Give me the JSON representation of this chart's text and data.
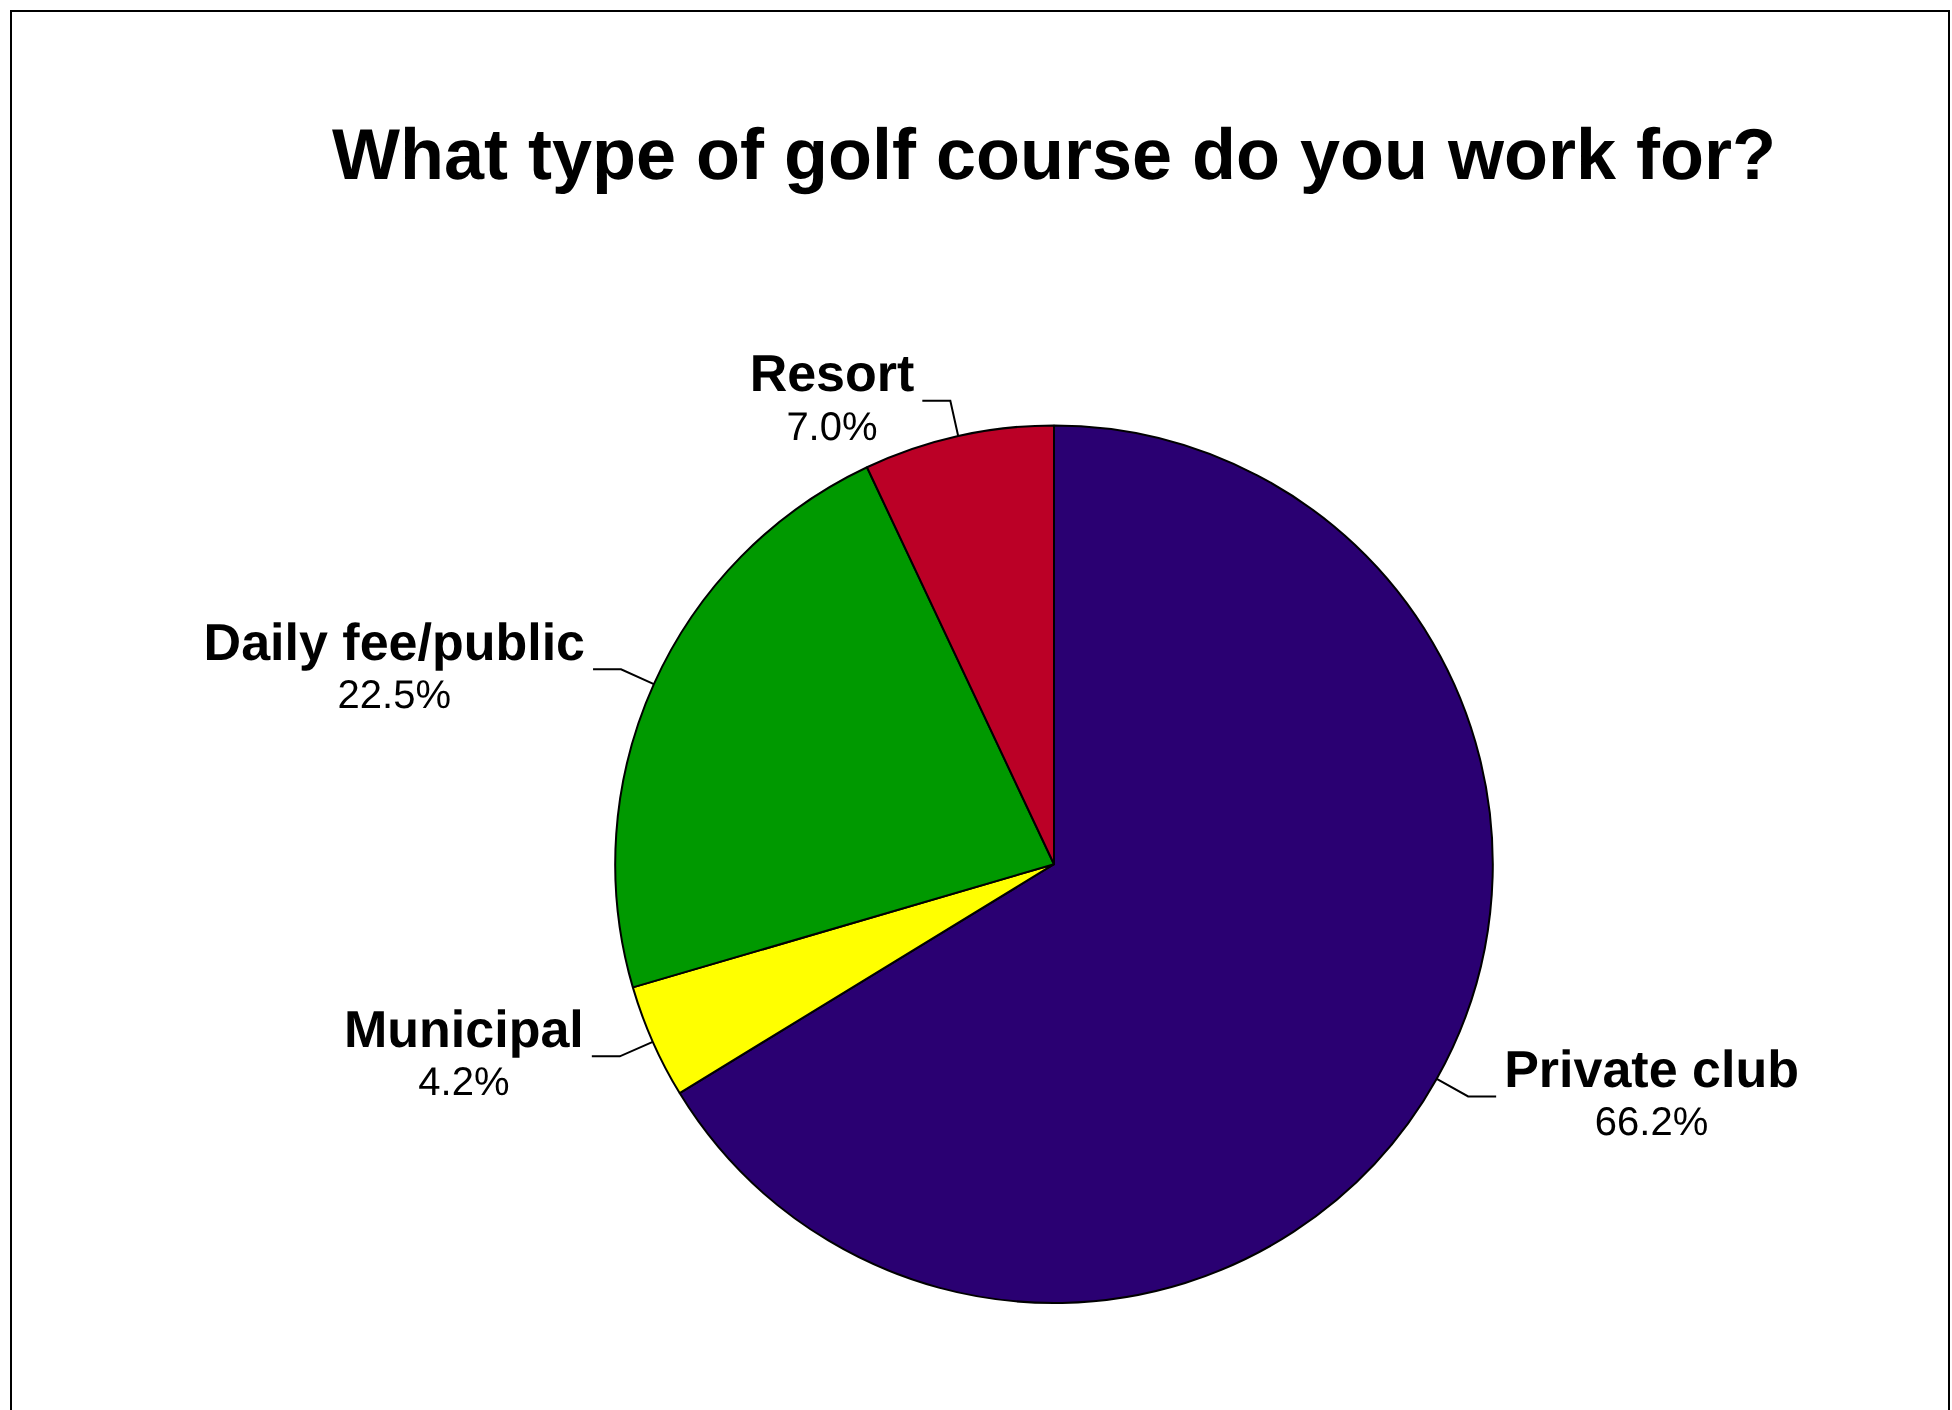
{
  "chart_data": {
    "type": "pie",
    "title": "What type of golf course do you work for?",
    "categories": [
      "Private club",
      "Municipal",
      "Daily fee/public",
      "Resort"
    ],
    "values": [
      66.2,
      4.2,
      22.5,
      7.0
    ],
    "colors": [
      "#2a0072",
      "#ffff00",
      "#009900",
      "#bb0026"
    ],
    "value_labels": [
      "66.2%",
      "4.2%",
      "22.5%",
      "7.0%"
    ],
    "legend": false
  }
}
